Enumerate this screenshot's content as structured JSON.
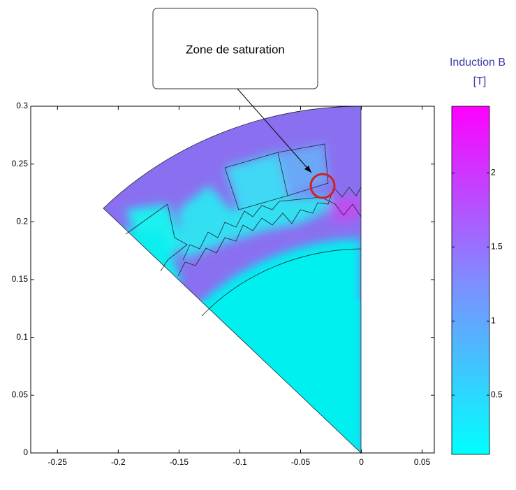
{
  "chart_data": {
    "type": "field",
    "annotation": "Zone de saturation",
    "colorbar_label": [
      "Induction B",
      "[T]"
    ],
    "xlim": [
      -0.272,
      0.06
    ],
    "xticks": [
      -0.25,
      -0.2,
      -0.15,
      -0.1,
      -0.05,
      0,
      0.05
    ],
    "ylim": [
      0,
      0.3
    ],
    "yticks": [
      0,
      0.05,
      0.1,
      0.15,
      0.2,
      0.25,
      0.3
    ],
    "clim": [
      0.1,
      2.45
    ],
    "cticks": [
      0.5,
      1,
      1.5,
      2
    ],
    "colormap": [
      "#00ffff",
      "#7f8cff",
      "#ff00ff"
    ]
  }
}
